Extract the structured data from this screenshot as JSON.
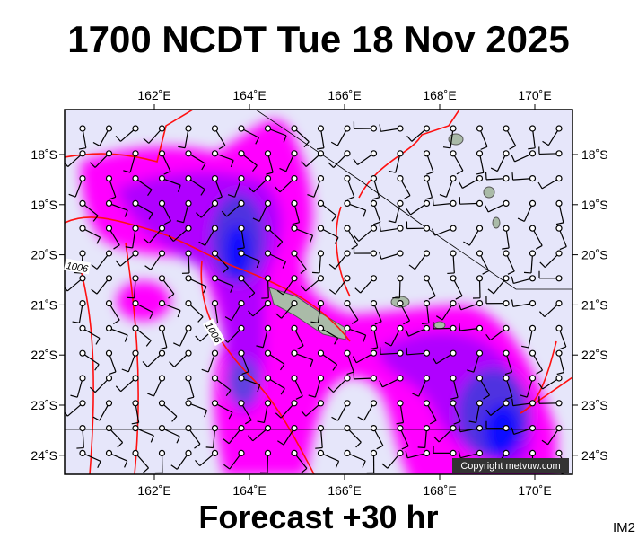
{
  "header": {
    "title": "1700 NCDT Tue 18 Nov 2025"
  },
  "map": {
    "lon_labels": [
      "162˚E",
      "164˚E",
      "166˚E",
      "168˚E",
      "170˚E"
    ],
    "lat_labels": [
      "18˚S",
      "19˚S",
      "20˚S",
      "21˚S",
      "22˚S",
      "23˚S",
      "24˚S"
    ],
    "isobar_labels": [
      "1006",
      "1006"
    ],
    "copyright": "Copyright metvuw.com"
  },
  "footer": {
    "caption": "Forecast +30 hr",
    "image_id": "IM2"
  }
}
